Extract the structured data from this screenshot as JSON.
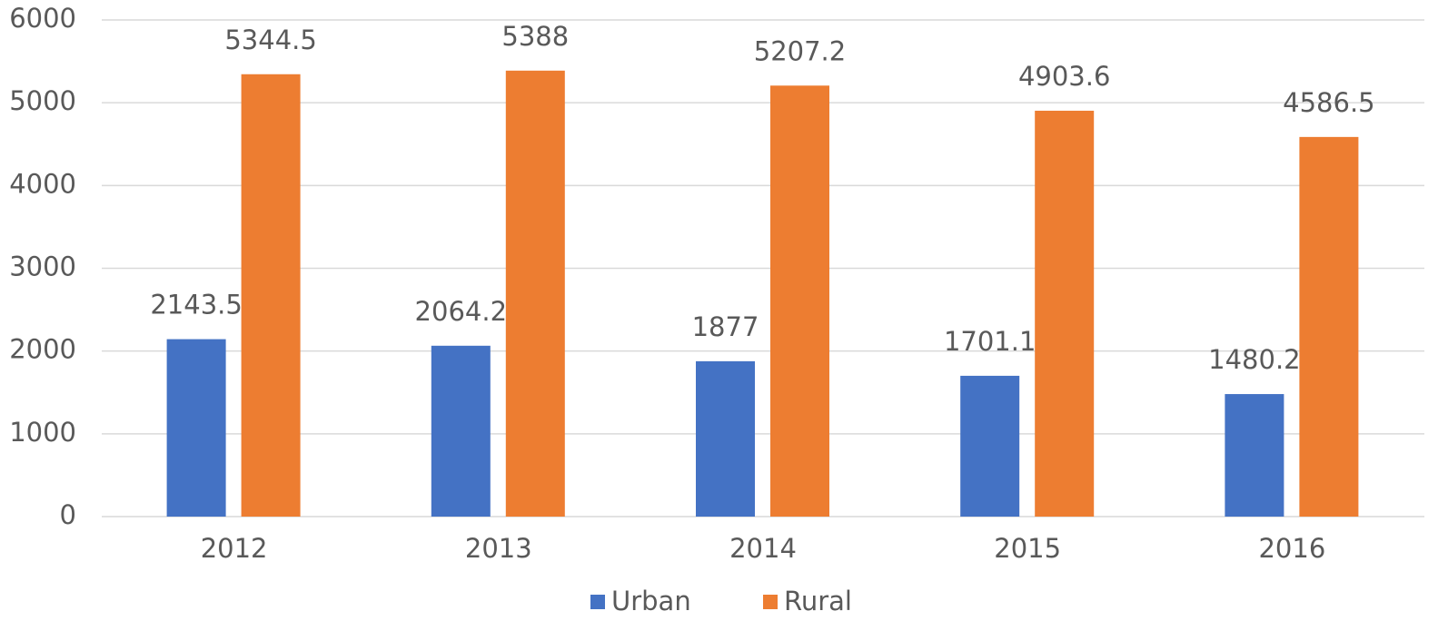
{
  "chart_data": {
    "type": "bar",
    "categories": [
      "2012",
      "2013",
      "2014",
      "2015",
      "2016"
    ],
    "series": [
      {
        "name": "Urban",
        "color": "#4472c4",
        "values": [
          2143.5,
          2064.2,
          1877,
          1701.1,
          1480.2
        ]
      },
      {
        "name": "Rural",
        "color": "#ed7d31",
        "values": [
          5344.5,
          5388,
          5207.2,
          4903.6,
          4586.5
        ]
      }
    ],
    "ylim": [
      0,
      6000
    ],
    "yticks": [
      0,
      1000,
      2000,
      3000,
      4000,
      5000,
      6000
    ],
    "grid": true,
    "legend": "bottom"
  }
}
